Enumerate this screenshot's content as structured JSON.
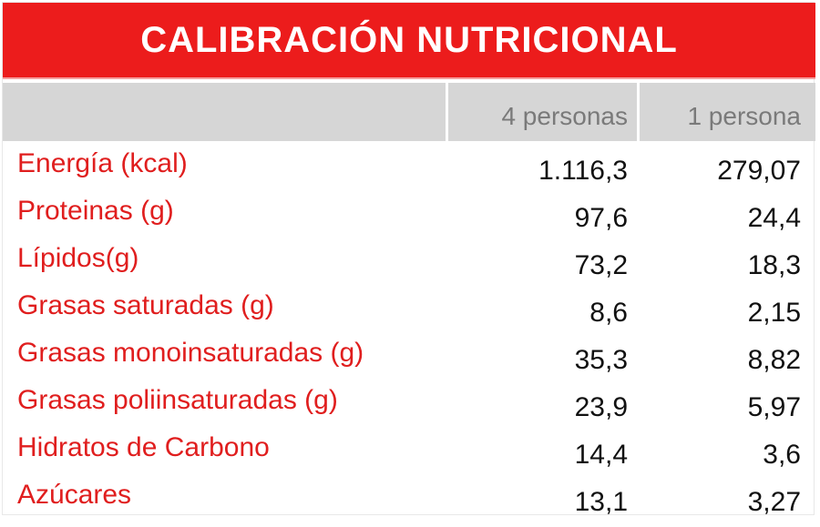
{
  "title": "CALIBRACIÓN NUTRICIONAL",
  "columns": [
    "4 personas",
    "1 persona"
  ],
  "rows": [
    {
      "label": "Energía (kcal)",
      "values": [
        "1.116,3",
        "279,07"
      ]
    },
    {
      "label": "Proteinas (g)",
      "values": [
        "97,6",
        "24,4"
      ]
    },
    {
      "label": "Lípidos(g)",
      "values": [
        "73,2",
        "18,3"
      ]
    },
    {
      "label": "Grasas saturadas (g)",
      "values": [
        "8,6",
        "2,15"
      ]
    },
    {
      "label": "Grasas monoinsaturadas (g)",
      "values": [
        "35,3",
        "8,82"
      ]
    },
    {
      "label": "Grasas poliinsaturadas (g)",
      "values": [
        "23,9",
        "5,97"
      ]
    },
    {
      "label": "Hidratos de Carbono",
      "values": [
        "14,4",
        "3,6"
      ]
    },
    {
      "label": "Azúcares",
      "values": [
        "13,1",
        "3,27"
      ]
    }
  ],
  "colors": {
    "title_background": "#ec1c1c",
    "header_background": "#d6d6d6",
    "label_text": "#e01e1e",
    "value_text": "#111111"
  }
}
